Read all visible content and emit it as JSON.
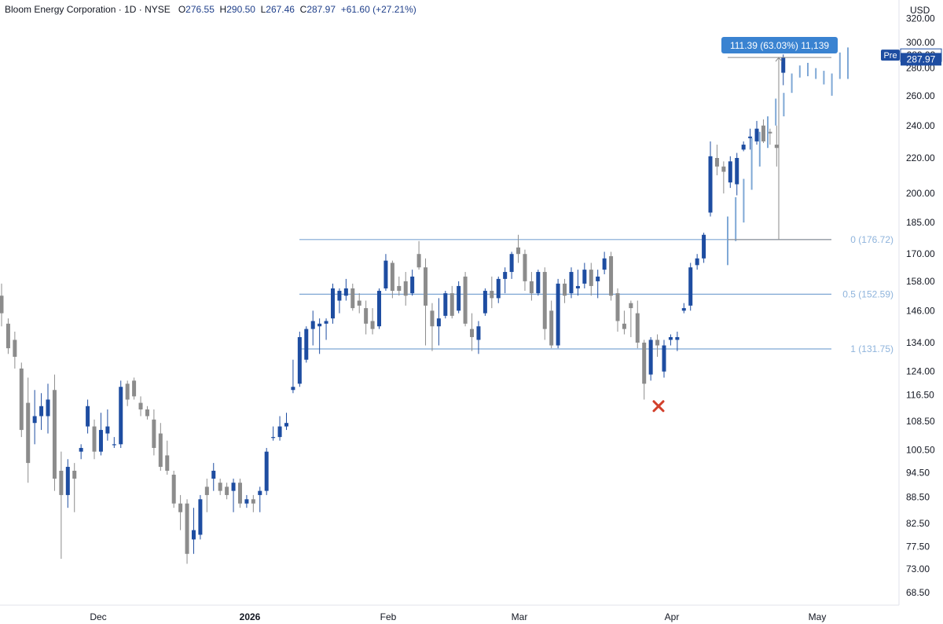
{
  "header": {
    "symbol_name": "Bloom Energy Corporation",
    "interval": "1D",
    "exchange": "NYSE",
    "open_label": "O",
    "open": "276.55",
    "high_label": "H",
    "high": "290.50",
    "low_label": "L",
    "low": "267.46",
    "close_label": "C",
    "close": "287.97",
    "change": "+61.60 (+27.21%)"
  },
  "currency": "USD",
  "colors": {
    "up": "#1e4da1",
    "down": "#8c8c8c",
    "projection": "#7fa8d6",
    "level_line": "#7ea6d4",
    "level_text": "#8fb4dc",
    "price_tag": "#1e4da1",
    "measure_tag": "#3a83d1",
    "marker": "#d2402c"
  },
  "chart_data": {
    "type": "candlestick",
    "price_axis": {
      "ticks": [
        320,
        300,
        280,
        260,
        240,
        220,
        200,
        185,
        170,
        158,
        146,
        134,
        124,
        116.5,
        108.5,
        100.5,
        94.5,
        88.5,
        82.5,
        77.5,
        73,
        68.5
      ],
      "tick_labels": [
        "320.00",
        "300.00",
        "280.00",
        "260.00",
        "240.00",
        "220.00",
        "200.00",
        "185.00",
        "170.00",
        "158.00",
        "146.00",
        "134.00",
        "124.00",
        "116.50",
        "108.50",
        "100.50",
        "94.50",
        "88.50",
        "82.50",
        "77.50",
        "73.00",
        "68.50"
      ],
      "scale": "log"
    },
    "time_axis": {
      "labels": [
        "Dec",
        "2026",
        "Feb",
        "Mar",
        "Apr",
        "May"
      ],
      "bold": [
        "2026"
      ]
    },
    "candles": [
      {
        "o": 152,
        "h": 157,
        "l": 140,
        "c": 145
      },
      {
        "o": 141,
        "h": 143,
        "l": 130,
        "c": 132
      },
      {
        "o": 135,
        "h": 138,
        "l": 125,
        "c": 129
      },
      {
        "o": 125,
        "h": 127,
        "l": 104,
        "c": 106
      },
      {
        "o": 114,
        "h": 122,
        "l": 92,
        "c": 97
      },
      {
        "o": 108,
        "h": 118,
        "l": 102,
        "c": 110
      },
      {
        "o": 110,
        "h": 117,
        "l": 106,
        "c": 113
      },
      {
        "o": 110,
        "h": 120,
        "l": 105,
        "c": 115
      },
      {
        "o": 118,
        "h": 123,
        "l": 90,
        "c": 93
      },
      {
        "o": 95,
        "h": 100,
        "l": 75,
        "c": 89
      },
      {
        "o": 89,
        "h": 98,
        "l": 86,
        "c": 96
      },
      {
        "o": 95,
        "h": 97,
        "l": 85,
        "c": 93
      },
      {
        "o": 100,
        "h": 102,
        "l": 98,
        "c": 101
      },
      {
        "o": 107,
        "h": 115,
        "l": 105,
        "c": 113
      },
      {
        "o": 107,
        "h": 109,
        "l": 98,
        "c": 100
      },
      {
        "o": 100,
        "h": 111,
        "l": 99,
        "c": 106
      },
      {
        "o": 105,
        "h": 112,
        "l": 103,
        "c": 107
      },
      {
        "o": 102,
        "h": 104,
        "l": 101,
        "c": 102
      },
      {
        "o": 102,
        "h": 121,
        "l": 101,
        "c": 119
      },
      {
        "o": 120,
        "h": 121,
        "l": 113,
        "c": 115
      },
      {
        "o": 121,
        "h": 122,
        "l": 115,
        "c": 116
      },
      {
        "o": 114,
        "h": 116,
        "l": 110,
        "c": 112
      },
      {
        "o": 112,
        "h": 113,
        "l": 109,
        "c": 110
      },
      {
        "o": 109,
        "h": 112,
        "l": 99,
        "c": 101
      },
      {
        "o": 105,
        "h": 108,
        "l": 95,
        "c": 96
      },
      {
        "o": 99,
        "h": 103,
        "l": 94,
        "c": 95
      },
      {
        "o": 94,
        "h": 95,
        "l": 86,
        "c": 87
      },
      {
        "o": 87,
        "h": 89,
        "l": 81,
        "c": 85
      },
      {
        "o": 87,
        "h": 88,
        "l": 74,
        "c": 76
      },
      {
        "o": 79,
        "h": 86,
        "l": 76,
        "c": 81
      },
      {
        "o": 80,
        "h": 89,
        "l": 79,
        "c": 88
      },
      {
        "o": 91,
        "h": 93,
        "l": 85,
        "c": 89
      },
      {
        "o": 93,
        "h": 97,
        "l": 90,
        "c": 95
      },
      {
        "o": 92,
        "h": 93,
        "l": 89,
        "c": 90
      },
      {
        "o": 91,
        "h": 92,
        "l": 88,
        "c": 89
      },
      {
        "o": 90,
        "h": 93,
        "l": 85,
        "c": 92
      },
      {
        "o": 92,
        "h": 93,
        "l": 86,
        "c": 87
      },
      {
        "o": 87,
        "h": 89,
        "l": 86,
        "c": 88
      },
      {
        "o": 88,
        "h": 89,
        "l": 85,
        "c": 87
      },
      {
        "o": 89,
        "h": 91,
        "l": 85,
        "c": 90
      },
      {
        "o": 90,
        "h": 101,
        "l": 89,
        "c": 100
      },
      {
        "o": 104,
        "h": 107,
        "l": 103,
        "c": 104
      },
      {
        "o": 104,
        "h": 110,
        "l": 103,
        "c": 107
      },
      {
        "o": 107,
        "h": 111,
        "l": 106,
        "c": 108
      },
      {
        "o": 118,
        "h": 128,
        "l": 117,
        "c": 119
      },
      {
        "o": 120,
        "h": 138,
        "l": 119,
        "c": 136
      },
      {
        "o": 128,
        "h": 140,
        "l": 127,
        "c": 139
      },
      {
        "o": 139,
        "h": 146,
        "l": 133,
        "c": 142
      },
      {
        "o": 140,
        "h": 143,
        "l": 130,
        "c": 141
      },
      {
        "o": 141,
        "h": 143,
        "l": 135,
        "c": 142
      },
      {
        "o": 143,
        "h": 157,
        "l": 141,
        "c": 155
      },
      {
        "o": 150,
        "h": 155,
        "l": 145,
        "c": 154
      },
      {
        "o": 152,
        "h": 159,
        "l": 150,
        "c": 155
      },
      {
        "o": 155,
        "h": 157,
        "l": 146,
        "c": 147
      },
      {
        "o": 150,
        "h": 153,
        "l": 145,
        "c": 148
      },
      {
        "o": 147,
        "h": 150,
        "l": 137,
        "c": 141
      },
      {
        "o": 142,
        "h": 147,
        "l": 137,
        "c": 139
      },
      {
        "o": 140,
        "h": 155,
        "l": 139,
        "c": 154
      },
      {
        "o": 155,
        "h": 170,
        "l": 154,
        "c": 167
      },
      {
        "o": 166,
        "h": 167,
        "l": 151,
        "c": 154
      },
      {
        "o": 156,
        "h": 160,
        "l": 152,
        "c": 154
      },
      {
        "o": 158,
        "h": 162,
        "l": 148,
        "c": 152
      },
      {
        "o": 153,
        "h": 163,
        "l": 152,
        "c": 160
      },
      {
        "o": 170,
        "h": 176,
        "l": 163,
        "c": 164
      },
      {
        "o": 164,
        "h": 168,
        "l": 133,
        "c": 148
      },
      {
        "o": 146,
        "h": 149,
        "l": 131,
        "c": 140
      },
      {
        "o": 140,
        "h": 151,
        "l": 133,
        "c": 143
      },
      {
        "o": 144,
        "h": 154,
        "l": 143,
        "c": 153
      },
      {
        "o": 153,
        "h": 156,
        "l": 143,
        "c": 144
      },
      {
        "o": 146,
        "h": 158,
        "l": 145,
        "c": 156
      },
      {
        "o": 160,
        "h": 162,
        "l": 140,
        "c": 141
      },
      {
        "o": 139,
        "h": 145,
        "l": 131,
        "c": 136
      },
      {
        "o": 135,
        "h": 142,
        "l": 130,
        "c": 140
      },
      {
        "o": 145,
        "h": 155,
        "l": 144,
        "c": 154
      },
      {
        "o": 154,
        "h": 160,
        "l": 147,
        "c": 151
      },
      {
        "o": 151,
        "h": 160,
        "l": 149,
        "c": 159
      },
      {
        "o": 159,
        "h": 164,
        "l": 153,
        "c": 162
      },
      {
        "o": 162,
        "h": 171,
        "l": 159,
        "c": 170
      },
      {
        "o": 173,
        "h": 179,
        "l": 166,
        "c": 170
      },
      {
        "o": 170,
        "h": 172,
        "l": 154,
        "c": 158
      },
      {
        "o": 158,
        "h": 162,
        "l": 150,
        "c": 153
      },
      {
        "o": 153,
        "h": 163,
        "l": 152,
        "c": 162
      },
      {
        "o": 162,
        "h": 164,
        "l": 135,
        "c": 139
      },
      {
        "o": 146,
        "h": 150,
        "l": 132,
        "c": 133
      },
      {
        "o": 133,
        "h": 159,
        "l": 132,
        "c": 157
      },
      {
        "o": 157,
        "h": 159,
        "l": 149,
        "c": 152
      },
      {
        "o": 153,
        "h": 164,
        "l": 151,
        "c": 162
      },
      {
        "o": 155,
        "h": 163,
        "l": 152,
        "c": 156
      },
      {
        "o": 157,
        "h": 166,
        "l": 155,
        "c": 163
      },
      {
        "o": 163,
        "h": 166,
        "l": 152,
        "c": 156
      },
      {
        "o": 158,
        "h": 163,
        "l": 151,
        "c": 160
      },
      {
        "o": 163,
        "h": 171,
        "l": 161,
        "c": 168
      },
      {
        "o": 169,
        "h": 171,
        "l": 150,
        "c": 152
      },
      {
        "o": 153,
        "h": 155,
        "l": 138,
        "c": 142
      },
      {
        "o": 141,
        "h": 146,
        "l": 137,
        "c": 139
      },
      {
        "o": 149,
        "h": 150,
        "l": 136,
        "c": 147
      },
      {
        "o": 145,
        "h": 150,
        "l": 132,
        "c": 134
      },
      {
        "o": 134,
        "h": 135,
        "l": 115,
        "c": 120
      },
      {
        "o": 123,
        "h": 136,
        "l": 121,
        "c": 135
      },
      {
        "o": 135,
        "h": 137,
        "l": 129,
        "c": 133
      },
      {
        "o": 124,
        "h": 135,
        "l": 122,
        "c": 133
      },
      {
        "o": 135,
        "h": 137,
        "l": 133,
        "c": 136
      },
      {
        "o": 135,
        "h": 138,
        "l": 131,
        "c": 136
      },
      {
        "o": 146,
        "h": 149,
        "l": 145,
        "c": 147
      },
      {
        "o": 148,
        "h": 166,
        "l": 146,
        "c": 164
      },
      {
        "o": 165,
        "h": 170,
        "l": 163,
        "c": 168
      },
      {
        "o": 168,
        "h": 180,
        "l": 166,
        "c": 179
      },
      {
        "o": 190,
        "h": 230,
        "l": 188,
        "c": 221
      },
      {
        "o": 220,
        "h": 228,
        "l": 210,
        "c": 215
      },
      {
        "o": 215,
        "h": 218,
        "l": 200,
        "c": 212
      },
      {
        "o": 206,
        "h": 221,
        "l": 203,
        "c": 218
      },
      {
        "o": 205,
        "h": 223,
        "l": 199,
        "c": 220
      },
      {
        "o": 225,
        "h": 230,
        "l": 224,
        "c": 228
      },
      {
        "o": 232,
        "h": 238,
        "l": 225,
        "c": 233
      },
      {
        "o": 230,
        "h": 243,
        "l": 228,
        "c": 238
      },
      {
        "o": 240,
        "h": 244,
        "l": 229,
        "c": 230
      },
      {
        "o": 236,
        "h": 238,
        "l": 228,
        "c": 235
      },
      {
        "o": 228,
        "h": 240,
        "l": 215,
        "c": 226
      },
      {
        "o": 276.55,
        "h": 290.5,
        "l": 267.46,
        "c": 287.97
      }
    ],
    "projection_bars": [
      {
        "h": 188,
        "l": 165
      },
      {
        "h": 198,
        "l": 176
      },
      {
        "h": 208,
        "l": 185
      },
      {
        "h": 232,
        "l": 202
      },
      {
        "h": 236,
        "l": 215
      },
      {
        "h": 246,
        "l": 226
      },
      {
        "h": 258,
        "l": 240
      },
      {
        "h": 262,
        "l": 246
      },
      {
        "h": 276,
        "l": 262
      },
      {
        "h": 282,
        "l": 273
      },
      {
        "h": 284,
        "l": 274
      },
      {
        "h": 280,
        "l": 272
      },
      {
        "h": 278,
        "l": 268
      },
      {
        "h": 276,
        "l": 260
      },
      {
        "h": 292,
        "l": 272
      },
      {
        "h": 296,
        "l": 272
      }
    ],
    "fib_levels": [
      {
        "label": "0 (176.72)",
        "price": 176.72
      },
      {
        "label": "0.5 (152.59)",
        "price": 152.59
      },
      {
        "label": "1 (131.75)",
        "price": 131.75
      }
    ],
    "measure": {
      "label": "111.39 (63.03%) 11,139",
      "from": 176.72,
      "to": 288.1
    },
    "current_price": {
      "value": 287.97,
      "label": "287.97"
    },
    "premarket": {
      "tag": "Pre",
      "value": 289.93,
      "label": "289.93"
    },
    "marker": {
      "price": 113
    }
  }
}
